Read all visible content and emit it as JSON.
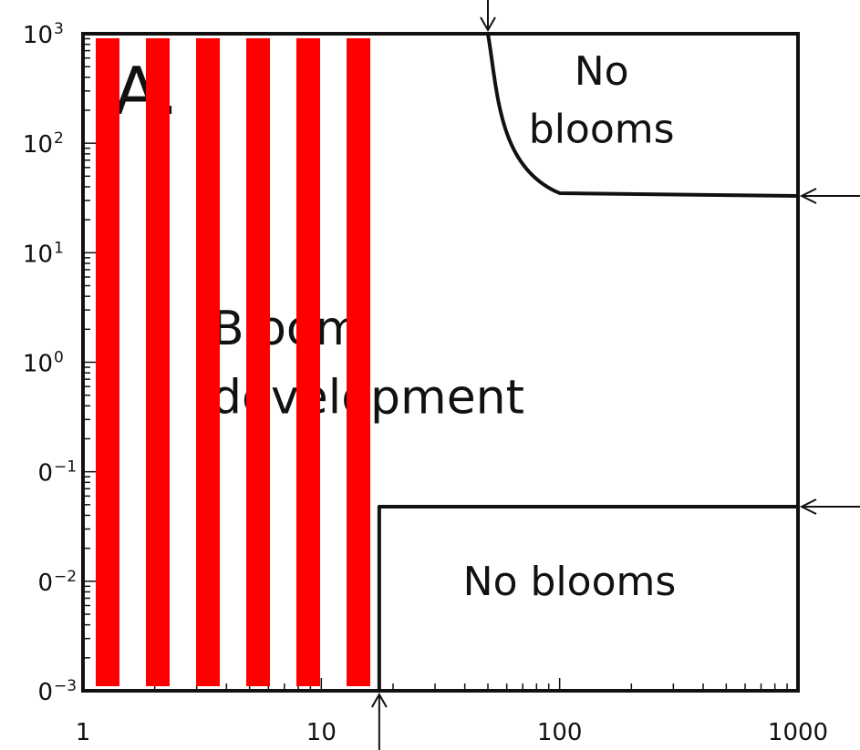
{
  "chart_data": {
    "type": "area",
    "title": "",
    "panel_label": "A.",
    "x_scale": "log",
    "y_scale": "log",
    "xlim": [
      1,
      1000
    ],
    "ylim": [
      0.001,
      1000
    ],
    "x_ticks": [
      {
        "value": 1,
        "label": "1"
      },
      {
        "value": 10,
        "label": "10"
      },
      {
        "value": 100,
        "label": "100"
      },
      {
        "value": 1000,
        "label": "1000"
      }
    ],
    "y_ticks": [
      {
        "value": 1000,
        "base": "10",
        "exp": "3"
      },
      {
        "value": 100,
        "base": "10",
        "exp": "2"
      },
      {
        "value": 10,
        "base": "10",
        "exp": "1"
      },
      {
        "value": 1,
        "base": "10",
        "exp": "0"
      },
      {
        "value": 0.1,
        "base": "0",
        "exp": "−1"
      },
      {
        "value": 0.01,
        "base": "0",
        "exp": "−2"
      },
      {
        "value": 0.001,
        "base": "0",
        "exp": "−3"
      }
    ],
    "regions": [
      {
        "label_lines": [
          "No",
          "blooms"
        ],
        "at": [
          150,
          250
        ]
      },
      {
        "label_lines": [
          "Bloom",
          "development"
        ],
        "at": [
          10,
          1
        ]
      },
      {
        "label_lines": [
          "No blooms"
        ],
        "at": [
          110,
          0.01
        ]
      }
    ],
    "boundaries": [
      {
        "name": "upper",
        "points": [
          [
            50,
            1000
          ],
          [
            55,
            200
          ],
          [
            70,
            50
          ],
          [
            100,
            35
          ],
          [
            1000,
            33
          ]
        ]
      },
      {
        "name": "lower",
        "points": [
          [
            17.5,
            0.001
          ],
          [
            17.5,
            0.048
          ],
          [
            1000,
            0.048
          ]
        ]
      }
    ],
    "arrows": [
      {
        "direction": "down",
        "x": 50,
        "y": 1000
      },
      {
        "direction": "left",
        "x": 1000,
        "y": 33
      },
      {
        "direction": "left",
        "x": 1000,
        "y": 0.048
      },
      {
        "direction": "up",
        "x": 17.5,
        "y": 0.001
      }
    ],
    "overlay": {
      "type": "vertical-stripes",
      "color": "#ff0000",
      "count": 6
    }
  }
}
